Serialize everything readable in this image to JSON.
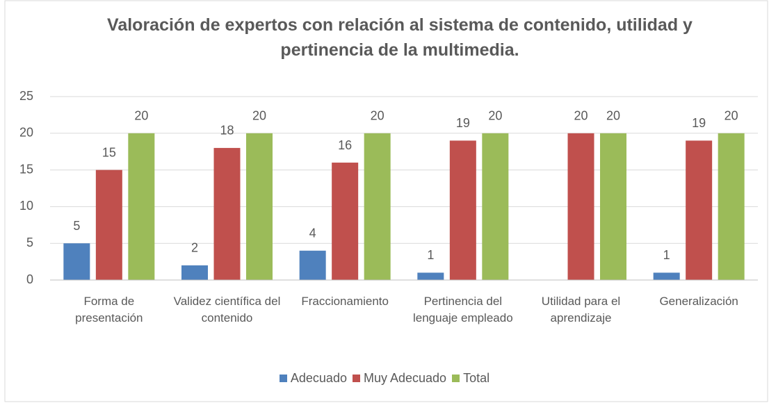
{
  "chart_data": {
    "type": "bar",
    "title": "Valoración de expertos con relación al sistema de contenido, utilidad y pertinencia de la multimedia.",
    "categories": [
      "Forma de presentación",
      "Validez científica del contenido",
      "Fraccionamiento",
      "Pertinencia del lenguaje empleado",
      "Utilidad para el aprendizaje",
      "Generalización"
    ],
    "series": [
      {
        "name": "Adecuado",
        "color": "#4f81bd",
        "values": [
          5,
          2,
          4,
          1,
          0,
          1
        ],
        "value_labels": [
          "5",
          "2",
          "4",
          "1",
          null,
          "1"
        ]
      },
      {
        "name": "Muy Adecuado",
        "color": "#c0504d",
        "values": [
          15,
          18,
          16,
          19,
          20,
          19
        ]
      },
      {
        "name": "Total",
        "color": "#9bbb59",
        "values": [
          20,
          20,
          20,
          20,
          20,
          20
        ]
      }
    ],
    "ylim": [
      0,
      25
    ],
    "yticks": [
      0,
      5,
      10,
      15,
      20,
      25
    ],
    "grid": true,
    "legend": "bottom"
  }
}
